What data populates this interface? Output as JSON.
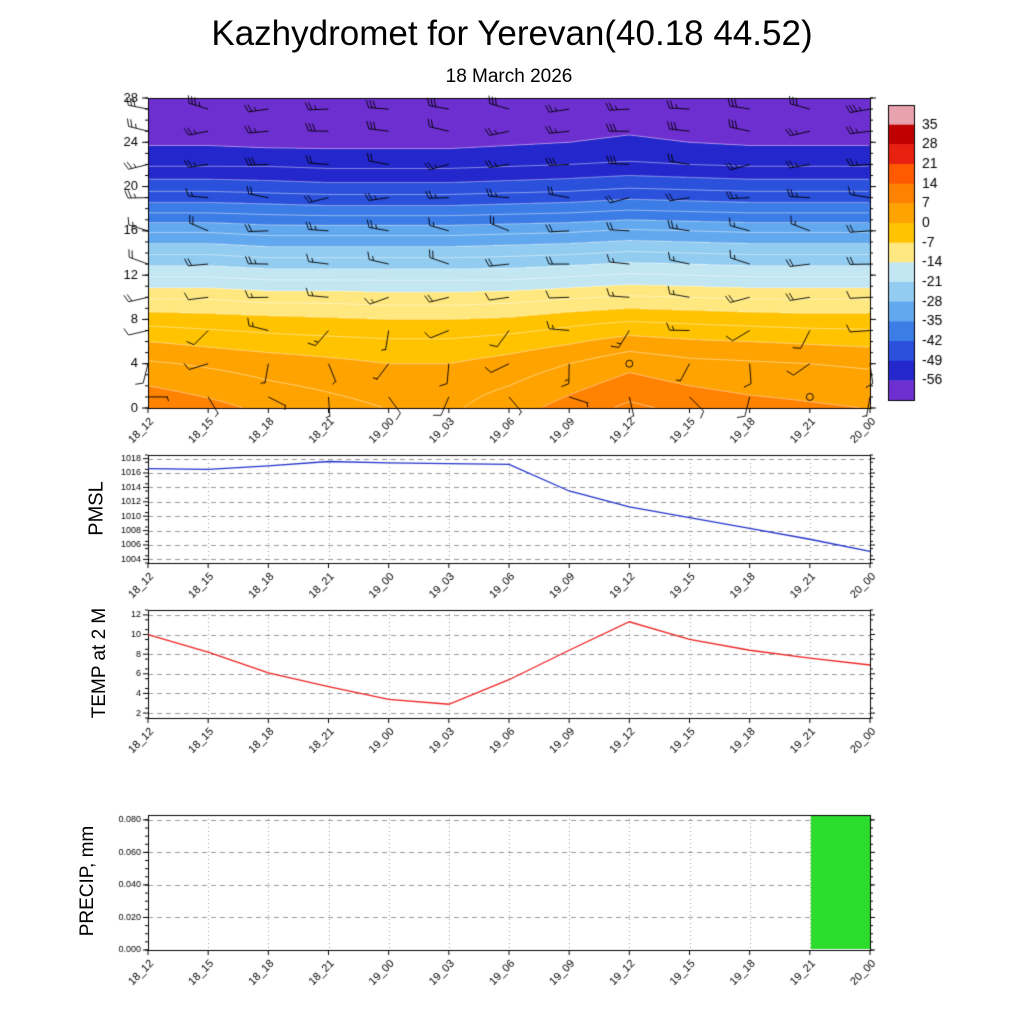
{
  "title": "Kazhydromet for Yerevan(40.18 44.52)",
  "subtitle": "18 March 2026",
  "times": [
    "18_12",
    "18_15",
    "18_18",
    "18_21",
    "19_00",
    "19_03",
    "19_06",
    "19_09",
    "19_12",
    "19_15",
    "19_18",
    "19_21",
    "20_00"
  ],
  "chart_data": [
    {
      "type": "heatmap",
      "name": "upper-air-temperature-cross-section",
      "ylabel": "",
      "ylim": [
        0,
        28
      ],
      "yticks": [
        0,
        4,
        8,
        12,
        16,
        20,
        24,
        28
      ],
      "heights": [
        0,
        2,
        4,
        6,
        8,
        10,
        12,
        14,
        16,
        18,
        20,
        22,
        24,
        26,
        28
      ],
      "grid": [
        [
          10,
          8.2,
          6.1,
          4.7,
          3.4,
          2.9,
          5.4,
          8.4,
          11.3,
          9.5,
          8.4,
          7.6,
          6.9
        ],
        [
          7,
          5.5,
          4,
          3,
          2,
          2,
          3.5,
          6,
          8.5,
          7,
          6,
          5.5,
          5
        ],
        [
          4,
          3,
          2,
          1,
          0,
          0,
          1.5,
          3.5,
          6,
          4.5,
          4,
          3.5,
          3
        ],
        [
          0,
          -1,
          -2,
          -2.5,
          -3,
          -3,
          -2,
          -0.5,
          1.5,
          0.5,
          0,
          -0.5,
          -1
        ],
        [
          -5,
          -5.5,
          -6,
          -6.5,
          -7,
          -7,
          -6.5,
          -5,
          -4,
          -4.5,
          -5,
          -5.5,
          -5.5
        ],
        [
          -11,
          -11,
          -12,
          -12,
          -12.5,
          -12.5,
          -12,
          -11,
          -10,
          -10.5,
          -11,
          -11,
          -11
        ],
        [
          -18,
          -18,
          -19,
          -19,
          -19,
          -19,
          -19,
          -18,
          -17,
          -17.5,
          -18,
          -18,
          -18
        ],
        [
          -25,
          -25,
          -26,
          -26,
          -26,
          -26,
          -25.5,
          -25,
          -24,
          -24.5,
          -25,
          -25,
          -25
        ],
        [
          -32,
          -32,
          -33,
          -33,
          -33,
          -33,
          -32.5,
          -32,
          -31,
          -31.5,
          -32,
          -32,
          -32
        ],
        [
          -40,
          -40,
          -40.5,
          -41,
          -41,
          -41,
          -40.5,
          -40,
          -39,
          -39.5,
          -40,
          -40,
          -40
        ],
        [
          -47,
          -47,
          -47.5,
          -48,
          -48,
          -48,
          -47.5,
          -47,
          -46,
          -46.5,
          -47,
          -47,
          -47
        ],
        [
          -53,
          -53,
          -53,
          -53.5,
          -53.5,
          -53.5,
          -53,
          -52.5,
          -52,
          -52.5,
          -53,
          -53,
          -53
        ],
        [
          -56.5,
          -56.5,
          -57,
          -57,
          -57,
          -57,
          -56.5,
          -56,
          -55.5,
          -56,
          -56.5,
          -56.5,
          -56.5
        ],
        [
          -58,
          -58,
          -58,
          -58.5,
          -58,
          -58,
          -58,
          -57.5,
          -57,
          -57.5,
          -58,
          -58,
          -58
        ],
        [
          -57,
          -57.5,
          -57,
          -57,
          -57.5,
          -57,
          -57,
          -57,
          -56.5,
          -57,
          -57,
          -57.5,
          -57
        ]
      ],
      "colorbar_ticks": [
        35,
        28,
        21,
        14,
        7,
        0,
        -7,
        -14,
        -21,
        -28,
        -35,
        -42,
        -49,
        -56
      ],
      "colorbar_colors": [
        "#e8a2ae",
        "#c00000",
        "#e82010",
        "#ff5a00",
        "#ff8200",
        "#ffa300",
        "#ffc300",
        "#ffe87f",
        "#c2e6f2",
        "#92ccf0",
        "#62a8ee",
        "#3c7ce6",
        "#2a50dc",
        "#2427cc",
        "#6e2fd0"
      ],
      "contour_color": "#ffffff",
      "contour_interval": 3.5,
      "wind_barbs": {
        "heights": [
          1,
          4,
          7,
          10,
          13,
          16,
          19,
          22,
          25,
          27
        ],
        "dir": [
          150,
          200,
          240,
          265,
          275,
          280,
          270,
          265,
          270,
          275
        ],
        "speed": [
          6,
          8,
          12,
          15,
          18,
          20,
          22,
          25,
          27,
          28
        ],
        "calm": [
          [
            8,
            1
          ],
          [
            11,
            0
          ]
        ]
      }
    },
    {
      "type": "line",
      "ylabel": "PMSL",
      "color": "#2233cc",
      "ylim": [
        1003.5,
        1018.5
      ],
      "yticks": [
        1004,
        1006,
        1008,
        1010,
        1012,
        1014,
        1016,
        1018
      ],
      "values": [
        1016.6,
        1016.5,
        1017.0,
        1017.6,
        1017.4,
        1017.3,
        1017.2,
        1013.5,
        1011.3,
        1009.8,
        1008.3,
        1006.8,
        1005.1
      ]
    },
    {
      "type": "line",
      "ylabel": "TEMP at 2 M",
      "color": "#ee2222",
      "ylim": [
        1.5,
        12.5
      ],
      "yticks": [
        2,
        4,
        6,
        8,
        10,
        12
      ],
      "values": [
        10.0,
        8.2,
        6.1,
        4.7,
        3.4,
        2.9,
        5.4,
        8.4,
        11.3,
        9.5,
        8.4,
        7.6,
        6.9
      ]
    },
    {
      "type": "bar",
      "ylabel": "PRECIP, mm",
      "color": "#2ddd2d",
      "ylim": [
        0,
        0.083
      ],
      "yticks": [
        0,
        0.02,
        0.04,
        0.06,
        0.08
      ],
      "ytick_labels": [
        "0.000",
        "0.020",
        "0.040",
        "0.060",
        "0.080"
      ],
      "values": [
        0,
        0,
        0,
        0,
        0,
        0,
        0,
        0,
        0,
        0,
        0,
        0.083
      ]
    }
  ]
}
